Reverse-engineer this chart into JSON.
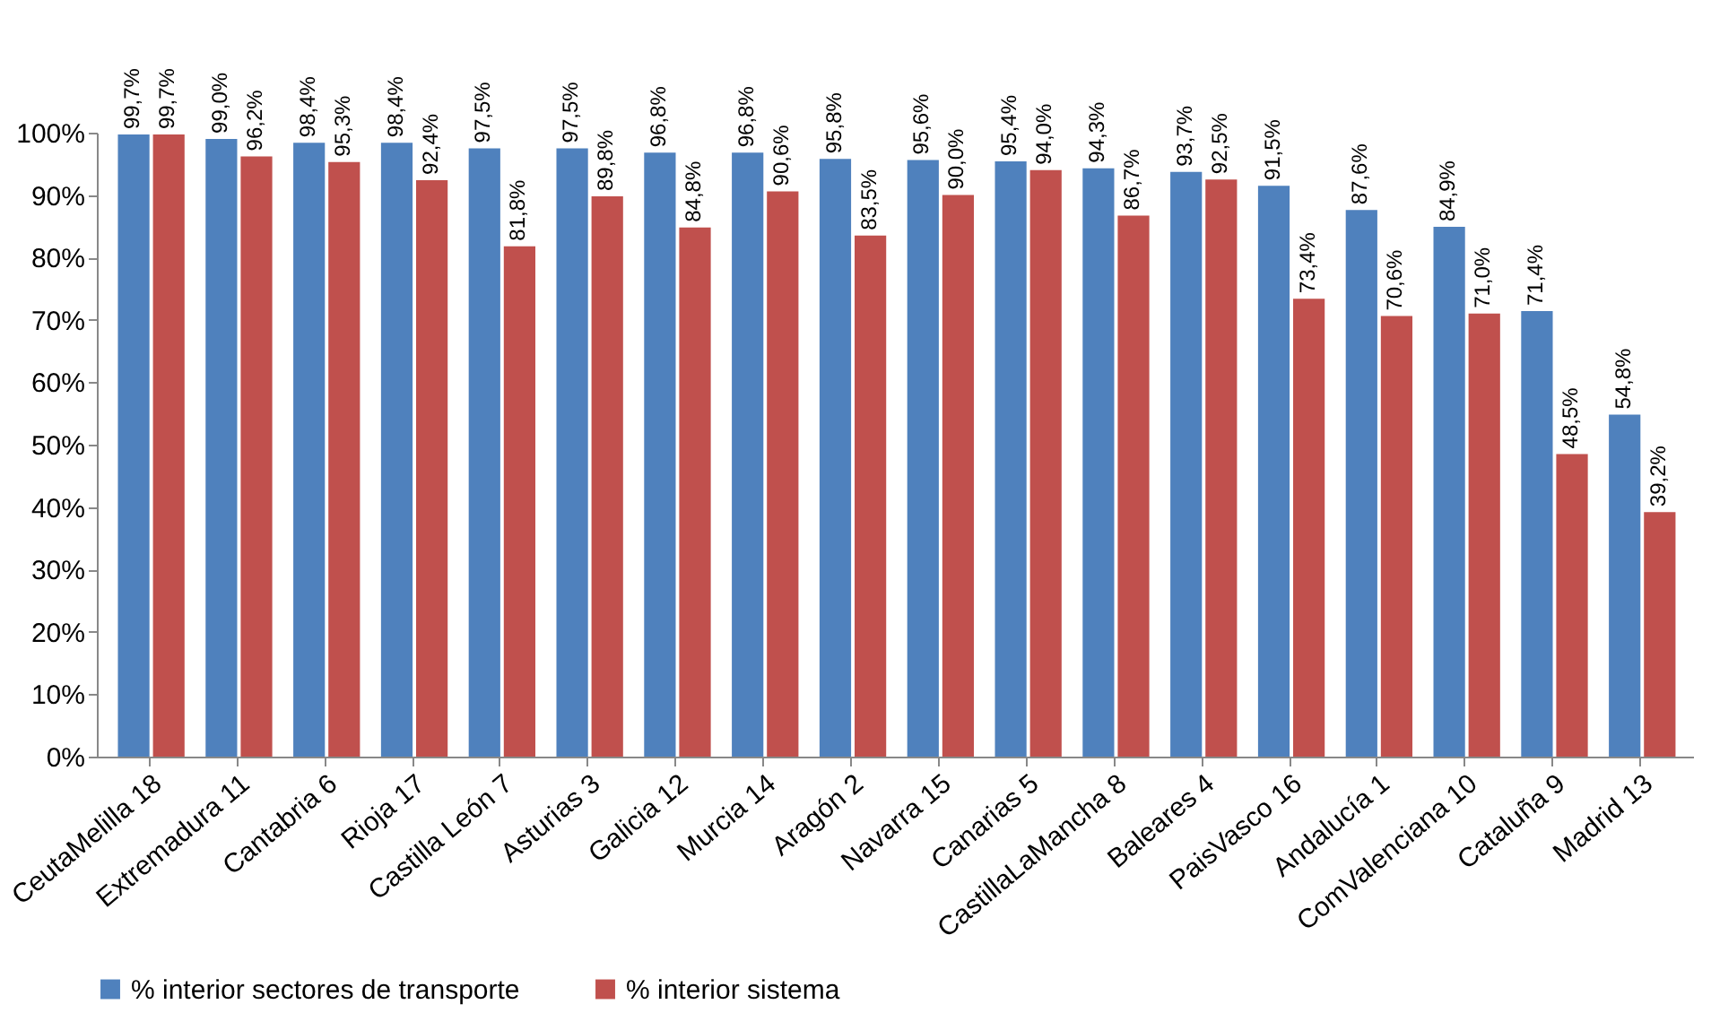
{
  "chart_data": {
    "type": "bar",
    "categories": [
      "CeutaMelilla 18",
      "Extremadura 11",
      "Cantabria 6",
      "Rioja 17",
      "Castilla León 7",
      "Asturias 3",
      "Galicia 12",
      "Murcia 14",
      "Aragón 2",
      "Navarra 15",
      "Canarias 5",
      "CastillaLaMancha 8",
      "Baleares 4",
      "PaisVasco 16",
      "Andalucía 1",
      "ComValenciana 10",
      "Cataluña 9",
      "Madrid 13"
    ],
    "series": [
      {
        "name": "% interior sectores de transporte",
        "color": "#4f81bd",
        "values": [
          99.7,
          99.0,
          98.4,
          98.4,
          97.5,
          97.5,
          96.8,
          96.8,
          95.8,
          95.6,
          95.4,
          94.3,
          93.7,
          91.5,
          87.6,
          84.9,
          71.4,
          54.8
        ],
        "value_labels": [
          "99,7%",
          "99,0%",
          "98,4%",
          "98,4%",
          "97,5%",
          "97,5%",
          "96,8%",
          "96,8%",
          "95,8%",
          "95,6%",
          "95,4%",
          "94,3%",
          "93,7%",
          "91,5%",
          "87,6%",
          "84,9%",
          "71,4%",
          "54,8%"
        ]
      },
      {
        "name": "% interior sistema",
        "color": "#c0504d",
        "values": [
          99.7,
          96.2,
          95.3,
          92.4,
          81.8,
          89.8,
          84.8,
          90.6,
          83.5,
          90.0,
          94.0,
          86.7,
          92.5,
          73.4,
          70.6,
          71.0,
          48.5,
          39.2
        ],
        "value_labels": [
          "99,7%",
          "96,2%",
          "95,3%",
          "92,4%",
          "81,8%",
          "89,8%",
          "84,8%",
          "90,6%",
          "83,5%",
          "90,0%",
          "94,0%",
          "86,7%",
          "92,5%",
          "73,4%",
          "70,6%",
          "71,0%",
          "48,5%",
          "39,2%"
        ]
      }
    ],
    "ylim": [
      0,
      100
    ],
    "yticks": [
      {
        "value": 0,
        "label": "0%"
      },
      {
        "value": 10,
        "label": "10%"
      },
      {
        "value": 20,
        "label": "20%"
      },
      {
        "value": 30,
        "label": "30%"
      },
      {
        "value": 40,
        "label": "40%"
      },
      {
        "value": 50,
        "label": "50%"
      },
      {
        "value": 60,
        "label": "60%"
      },
      {
        "value": 70,
        "label": "70%"
      },
      {
        "value": 80,
        "label": "80%"
      },
      {
        "value": 90,
        "label": "90%"
      },
      {
        "value": 100,
        "label": "100%"
      }
    ],
    "grid": false,
    "legend": "bottom"
  }
}
